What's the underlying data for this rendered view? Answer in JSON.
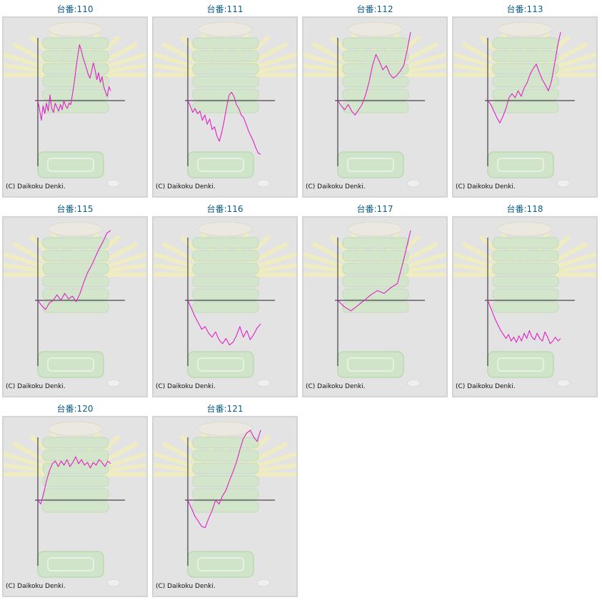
{
  "colors": {
    "title": "#0b5d87",
    "line": "#e020c8",
    "axis": "#222222",
    "frame_bg": "#e3e3e3",
    "border": "#d4d4d4"
  },
  "copyright": "(C) Daikoku Denki.",
  "background_art": "pachislot-machine-watermark",
  "chart_data": [
    {
      "type": "line",
      "title": "台番:110",
      "ylim": [
        -100,
        100
      ],
      "values": [
        0,
        -14,
        -30,
        -8,
        -20,
        -4,
        -16,
        8,
        -12,
        -18,
        -4,
        -10,
        -16,
        -6,
        -14,
        0,
        -8,
        -12,
        -4,
        -6,
        10,
        26,
        46,
        64,
        80,
        72,
        62,
        54,
        46,
        38,
        32,
        42,
        54,
        44,
        30,
        40,
        26,
        34,
        20,
        12,
        6,
        20,
        14
      ]
    },
    {
      "type": "line",
      "title": "台番:111",
      "ylim": [
        -100,
        100
      ],
      "values": [
        0,
        -8,
        -18,
        -12,
        -20,
        -16,
        -30,
        -22,
        -36,
        -28,
        -44,
        -40,
        -54,
        -62,
        -48,
        -30,
        -10,
        8,
        12,
        6,
        -6,
        -12,
        -22,
        -26,
        -36,
        -46,
        -54,
        -62,
        -72,
        -80,
        -82
      ]
    },
    {
      "type": "line",
      "title": "台番:112",
      "ylim": [
        -100,
        100
      ],
      "values": [
        0,
        -8,
        -14,
        -6,
        -16,
        -22,
        -14,
        -6,
        8,
        26,
        50,
        66,
        56,
        44,
        50,
        38,
        32,
        36,
        42,
        50,
        72,
        98
      ]
    },
    {
      "type": "line",
      "title": "台番:113",
      "ylim": [
        -100,
        100
      ],
      "values": [
        0,
        -6,
        -16,
        -26,
        -34,
        -24,
        -12,
        4,
        10,
        4,
        14,
        6,
        18,
        26,
        38,
        46,
        52,
        40,
        30,
        22,
        14,
        28,
        52,
        78,
        98
      ]
    },
    {
      "type": "line",
      "title": "台番:115",
      "ylim": [
        -100,
        100
      ],
      "values": [
        0,
        -8,
        -14,
        -4,
        0,
        8,
        0,
        10,
        2,
        6,
        -2,
        10,
        26,
        40,
        50,
        62,
        74,
        84,
        96,
        100
      ]
    },
    {
      "type": "line",
      "title": "台番:116",
      "ylim": [
        -100,
        100
      ],
      "values": [
        0,
        -12,
        -24,
        -34,
        -44,
        -40,
        -50,
        -56,
        -48,
        -60,
        -66,
        -58,
        -68,
        -64,
        -54,
        -40,
        -56,
        -46,
        -60,
        -52,
        -42,
        -36
      ]
    },
    {
      "type": "line",
      "title": "台番:117",
      "ylim": [
        -100,
        100
      ],
      "values": [
        0,
        -10,
        -16,
        -8,
        0,
        8,
        14,
        10,
        18,
        24,
        60,
        100
      ]
    },
    {
      "type": "line",
      "title": "台番:118",
      "ylim": [
        -100,
        100
      ],
      "values": [
        0,
        -10,
        -20,
        -30,
        -38,
        -46,
        -52,
        -58,
        -52,
        -62,
        -56,
        -64,
        -54,
        -62,
        -50,
        -58,
        -46,
        -56,
        -60,
        -50,
        -58,
        -62,
        -48,
        -56,
        -66,
        -62,
        -56,
        -62,
        -58
      ]
    },
    {
      "type": "line",
      "title": "台番:120",
      "ylim": [
        -100,
        100
      ],
      "values": [
        0,
        -6,
        10,
        28,
        42,
        52,
        56,
        48,
        56,
        50,
        58,
        48,
        54,
        62,
        52,
        58,
        50,
        54,
        46,
        54,
        50,
        58,
        54,
        48,
        56,
        52
      ]
    },
    {
      "type": "line",
      "title": "台番:121",
      "ylim": [
        -100,
        100
      ],
      "values": [
        0,
        -12,
        -24,
        -32,
        -40,
        -42,
        -28,
        -16,
        0,
        -6,
        6,
        14,
        28,
        40,
        54,
        72,
        88,
        96,
        100,
        90,
        84,
        100
      ]
    }
  ]
}
